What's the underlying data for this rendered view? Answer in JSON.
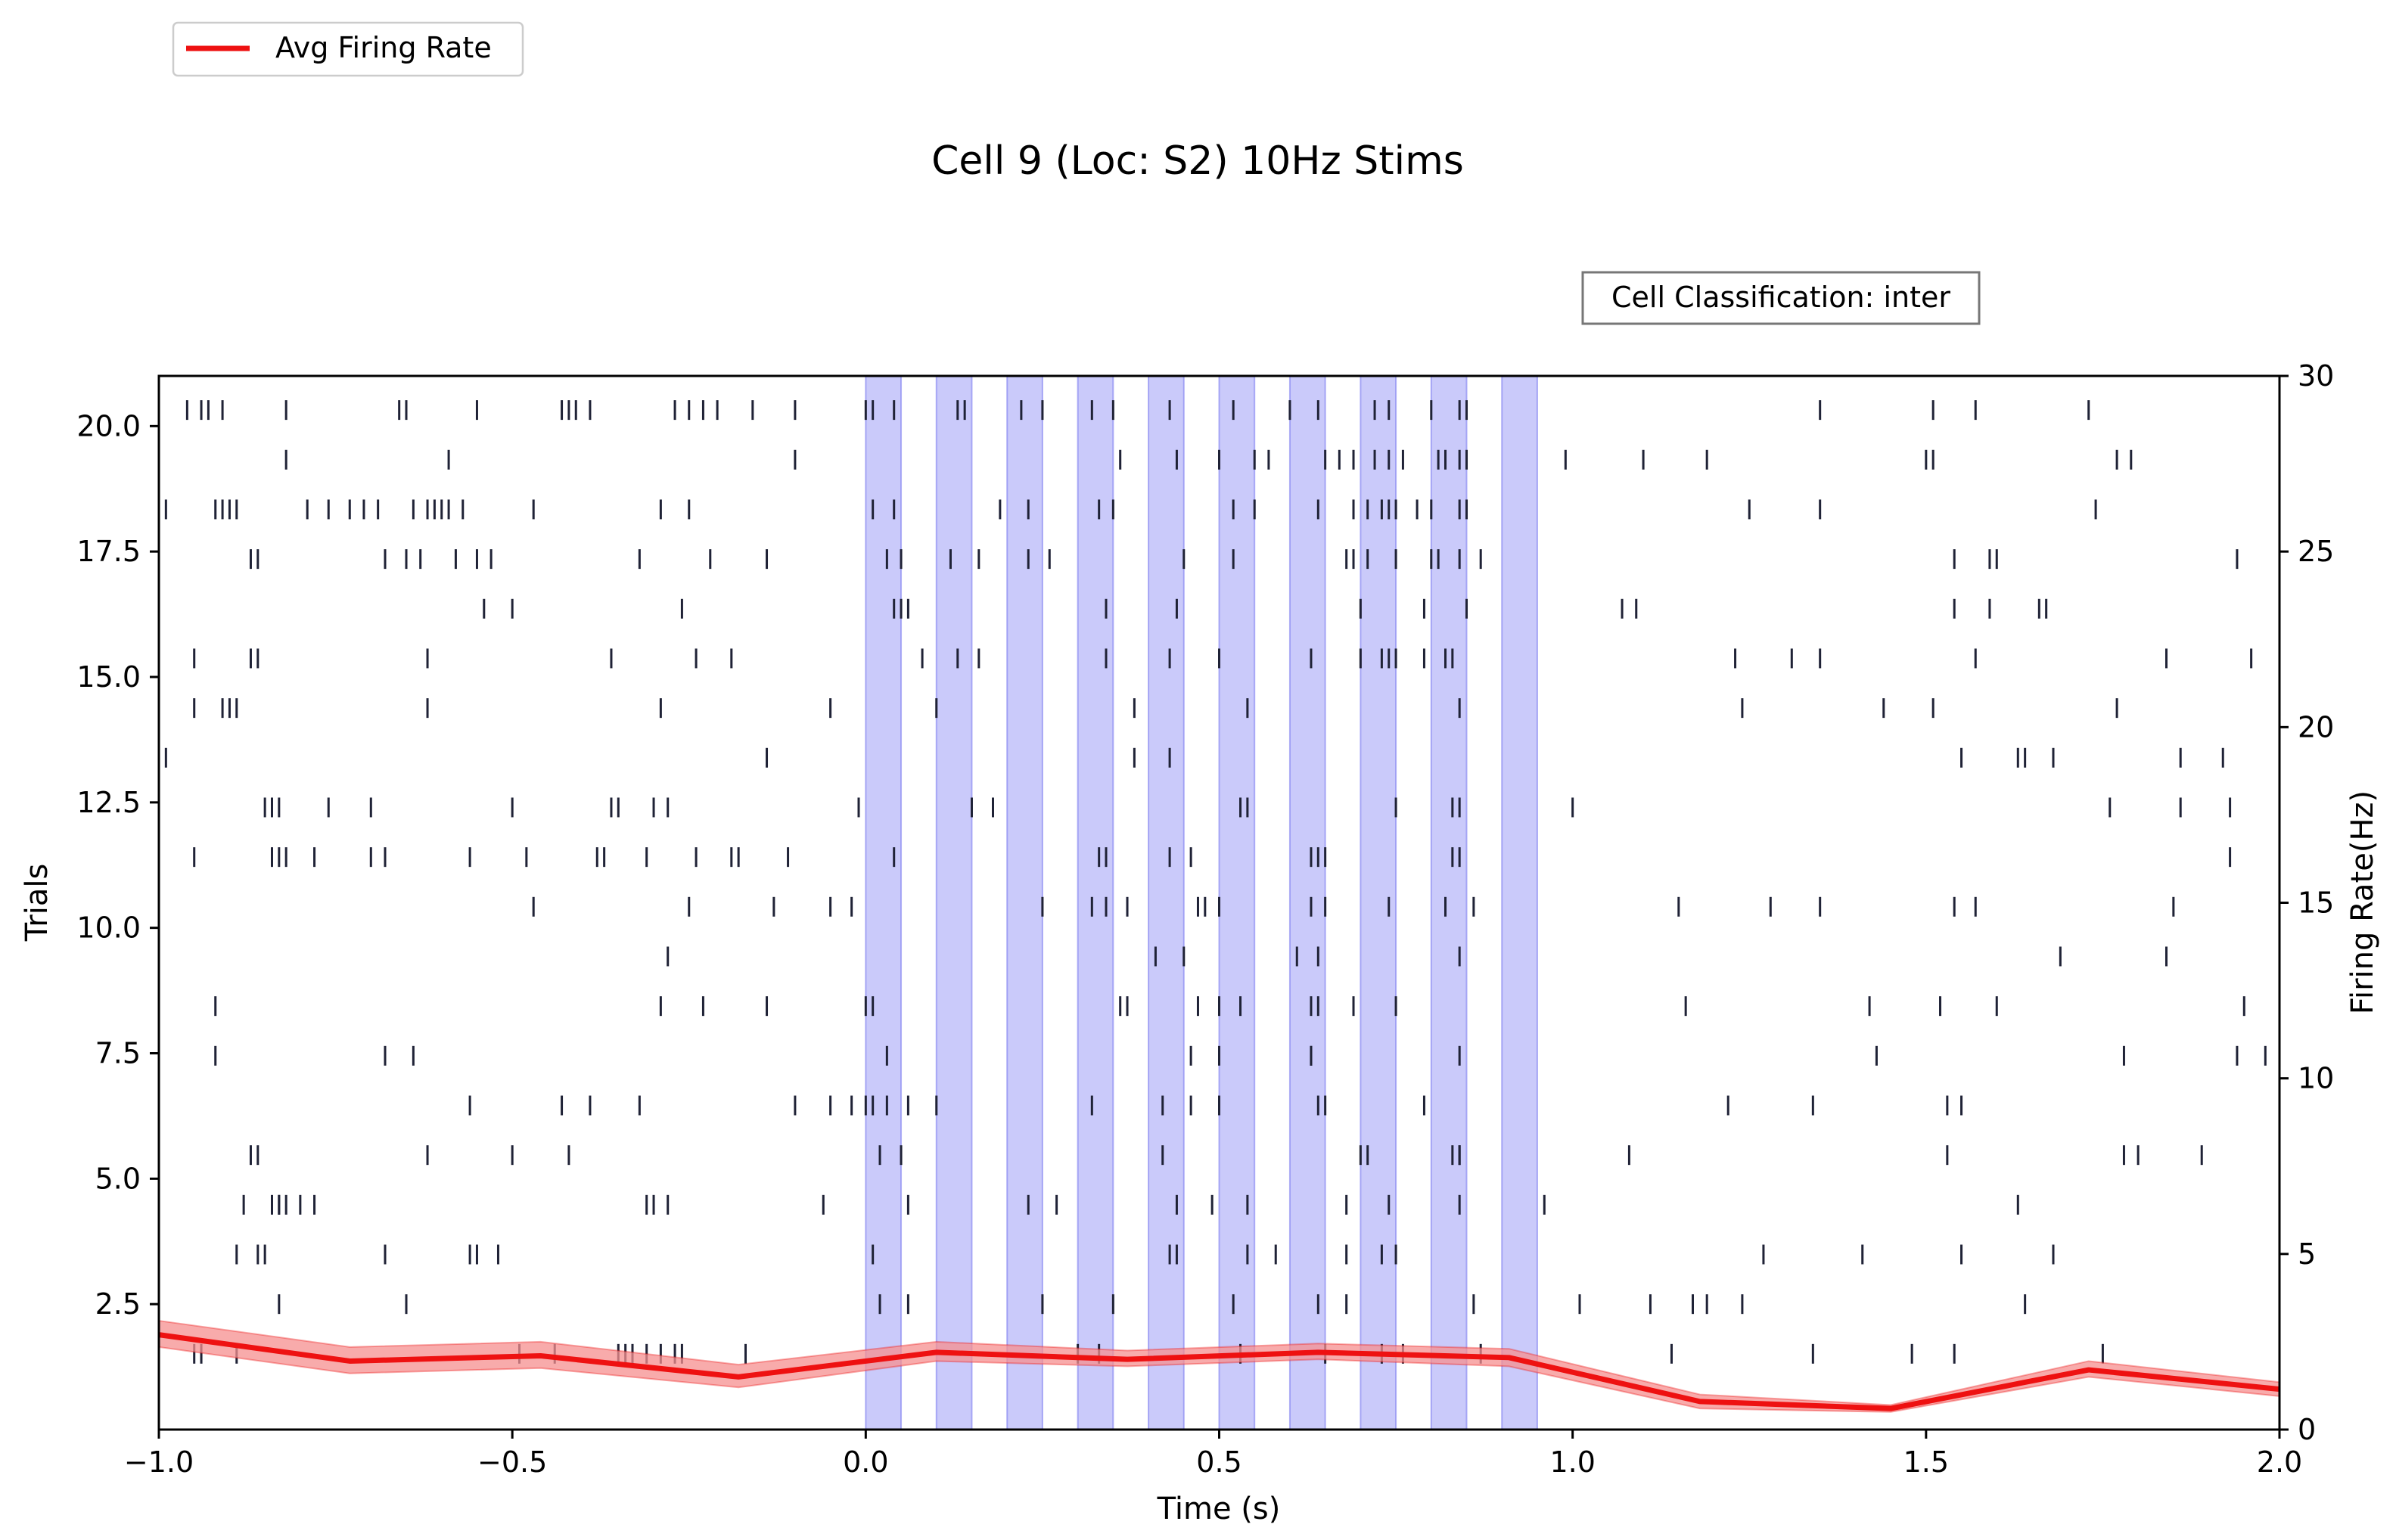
{
  "chart_data": {
    "type": "raster+line",
    "title": "Cell 9 (Loc: S2) 10Hz Stims",
    "annotation": "Cell Classification: inter",
    "xlabel": "Time (s)",
    "ylabel": "Trials",
    "ylabel_right": "Firing Rate(Hz)",
    "xlim": [
      -1.0,
      2.0
    ],
    "ylim": [
      0.0,
      21.0
    ],
    "ylim_right": [
      0,
      30
    ],
    "xticks": [
      "−1.0",
      "−0.5",
      "0.0",
      "0.5",
      "1.0",
      "1.5",
      "2.0"
    ],
    "yticks": [
      "2.5",
      "5.0",
      "7.5",
      "10.0",
      "12.5",
      "15.0",
      "17.5",
      "20.0"
    ],
    "yticks_right": [
      "0",
      "5",
      "10",
      "15",
      "20",
      "25",
      "30"
    ],
    "legend": {
      "label": "Avg Firing Rate",
      "placement": "top-left, outside"
    },
    "colors": {
      "line": "#ee1111",
      "band": "#f58f8f",
      "stim": "#b8b8f8",
      "stim_edge": "#7d7df0",
      "spike": "#1f2236"
    },
    "stim_windows": [
      [
        0.0,
        0.05
      ],
      [
        0.1,
        0.15
      ],
      [
        0.2,
        0.25
      ],
      [
        0.3,
        0.35
      ],
      [
        0.4,
        0.45
      ],
      [
        0.5,
        0.55
      ],
      [
        0.6,
        0.65
      ],
      [
        0.7,
        0.75
      ],
      [
        0.8,
        0.85
      ],
      [
        0.9,
        0.95
      ]
    ],
    "avg_firing_rate": {
      "x": [
        -1.0,
        -0.73,
        -0.46,
        -0.18,
        0.1,
        0.37,
        0.64,
        0.91,
        1.18,
        1.45,
        1.73,
        2.0
      ],
      "y": [
        2.7,
        1.95,
        2.1,
        1.5,
        2.2,
        2.0,
        2.2,
        2.05,
        0.8,
        0.6,
        1.7,
        1.15
      ],
      "y_lower": [
        2.35,
        1.6,
        1.75,
        1.2,
        1.95,
        1.8,
        2.0,
        1.8,
        0.6,
        0.5,
        1.5,
        0.95
      ],
      "y_upper": [
        3.1,
        2.35,
        2.5,
        1.85,
        2.5,
        2.25,
        2.45,
        2.3,
        1.0,
        0.7,
        1.95,
        1.35
      ]
    },
    "spike_trials": [
      {
        "trial": 20,
        "times": [
          -0.96,
          -0.94,
          -0.93,
          -0.91,
          -0.82,
          -0.66,
          -0.65,
          -0.55,
          -0.43,
          -0.42,
          -0.41,
          -0.39,
          -0.27,
          -0.25,
          -0.23,
          -0.21,
          -0.16,
          -0.1,
          0.0,
          0.01,
          0.04,
          0.13,
          0.14,
          0.22,
          0.25,
          0.32,
          0.35,
          0.43,
          0.52,
          0.6,
          0.64,
          0.72,
          0.74,
          0.8,
          0.84,
          0.85,
          1.35,
          1.51,
          1.57,
          1.73
        ]
      },
      {
        "trial": 19,
        "times": [
          -0.82,
          -0.59,
          -0.1,
          0.36,
          0.44,
          0.5,
          0.55,
          0.57,
          0.65,
          0.67,
          0.69,
          0.72,
          0.74,
          0.76,
          0.81,
          0.82,
          0.84,
          0.85,
          0.99,
          1.1,
          1.19,
          1.5,
          1.51,
          1.77,
          1.79
        ]
      },
      {
        "trial": 18,
        "times": [
          -0.99,
          -0.92,
          -0.91,
          -0.9,
          -0.89,
          -0.79,
          -0.76,
          -0.73,
          -0.71,
          -0.69,
          -0.64,
          -0.62,
          -0.61,
          -0.6,
          -0.59,
          -0.57,
          -0.47,
          -0.29,
          -0.25,
          0.01,
          0.04,
          0.19,
          0.23,
          0.33,
          0.35,
          0.52,
          0.55,
          0.64,
          0.69,
          0.71,
          0.73,
          0.74,
          0.75,
          0.78,
          0.8,
          0.84,
          0.85,
          1.25,
          1.35,
          1.74
        ]
      },
      {
        "trial": 17,
        "times": [
          -0.87,
          -0.86,
          -0.68,
          -0.65,
          -0.63,
          -0.58,
          -0.55,
          -0.53,
          -0.32,
          -0.22,
          -0.14,
          0.03,
          0.05,
          0.12,
          0.16,
          0.23,
          0.26,
          0.45,
          0.52,
          0.68,
          0.69,
          0.71,
          0.75,
          0.8,
          0.81,
          0.84,
          0.87,
          1.54,
          1.59,
          1.6,
          1.94
        ]
      },
      {
        "trial": 16,
        "times": [
          -0.54,
          -0.5,
          -0.26,
          0.04,
          0.05,
          0.06,
          0.34,
          0.44,
          0.7,
          0.79,
          0.85,
          1.07,
          1.09,
          1.54,
          1.59,
          1.66,
          1.67
        ]
      },
      {
        "trial": 15,
        "times": [
          -0.95,
          -0.87,
          -0.86,
          -0.62,
          -0.36,
          -0.24,
          -0.19,
          0.08,
          0.13,
          0.16,
          0.34,
          0.43,
          0.5,
          0.63,
          0.7,
          0.73,
          0.74,
          0.75,
          0.79,
          0.82,
          0.83,
          1.23,
          1.31,
          1.35,
          1.57,
          1.84,
          1.96
        ]
      },
      {
        "trial": 14,
        "times": [
          -0.95,
          -0.91,
          -0.9,
          -0.89,
          -0.62,
          -0.29,
          -0.05,
          0.1,
          0.38,
          0.54,
          0.84,
          1.24,
          1.44,
          1.51,
          1.77
        ]
      },
      {
        "trial": 13,
        "times": [
          -0.99,
          -0.14,
          0.38,
          0.43,
          1.55,
          1.63,
          1.64,
          1.68,
          1.86,
          1.92
        ]
      },
      {
        "trial": 12,
        "times": [
          -0.85,
          -0.84,
          -0.83,
          -0.76,
          -0.7,
          -0.5,
          -0.36,
          -0.35,
          -0.3,
          -0.28,
          -0.01,
          0.15,
          0.18,
          0.53,
          0.54,
          0.75,
          0.83,
          0.84,
          1.0,
          1.76,
          1.86,
          1.93
        ]
      },
      {
        "trial": 11,
        "times": [
          -0.95,
          -0.84,
          -0.83,
          -0.82,
          -0.78,
          -0.7,
          -0.68,
          -0.56,
          -0.48,
          -0.38,
          -0.37,
          -0.31,
          -0.24,
          -0.19,
          -0.18,
          -0.11,
          0.04,
          0.33,
          0.34,
          0.43,
          0.46,
          0.63,
          0.64,
          0.65,
          0.83,
          0.84,
          1.93
        ]
      },
      {
        "trial": 10,
        "times": [
          -0.47,
          -0.25,
          -0.13,
          -0.05,
          -0.02,
          0.25,
          0.32,
          0.34,
          0.37,
          0.47,
          0.48,
          0.5,
          0.63,
          0.65,
          0.74,
          0.82,
          0.86,
          1.15,
          1.28,
          1.35,
          1.54,
          1.57,
          1.85
        ]
      },
      {
        "trial": 9,
        "times": [
          -0.28,
          0.41,
          0.45,
          0.61,
          0.64,
          0.84,
          1.69,
          1.84
        ]
      },
      {
        "trial": 8,
        "times": [
          -0.92,
          -0.29,
          -0.23,
          -0.14,
          0.0,
          0.01,
          0.36,
          0.37,
          0.47,
          0.5,
          0.53,
          0.63,
          0.64,
          0.69,
          0.75,
          1.16,
          1.42,
          1.52,
          1.6,
          1.95
        ]
      },
      {
        "trial": 7,
        "times": [
          -0.92,
          -0.68,
          -0.64,
          0.03,
          0.46,
          0.5,
          0.63,
          0.63,
          0.84,
          1.43,
          1.78,
          1.94,
          1.98
        ]
      },
      {
        "trial": 6,
        "times": [
          -0.56,
          -0.43,
          -0.39,
          -0.32,
          -0.1,
          -0.05,
          -0.02,
          0.0,
          0.01,
          0.03,
          0.06,
          0.1,
          0.32,
          0.42,
          0.46,
          0.5,
          0.64,
          0.65,
          0.79,
          1.22,
          1.34,
          1.53,
          1.55
        ]
      },
      {
        "trial": 5,
        "times": [
          -0.87,
          -0.86,
          -0.62,
          -0.5,
          -0.42,
          0.02,
          0.05,
          0.42,
          0.7,
          0.71,
          0.83,
          0.84,
          0.84,
          1.08,
          1.53,
          1.78,
          1.8,
          1.89
        ]
      },
      {
        "trial": 4,
        "times": [
          -0.88,
          -0.84,
          -0.83,
          -0.83,
          -0.82,
          -0.8,
          -0.78,
          -0.31,
          -0.3,
          -0.28,
          -0.06,
          0.06,
          0.23,
          0.27,
          0.44,
          0.49,
          0.54,
          0.68,
          0.74,
          0.84,
          0.96,
          1.63
        ]
      },
      {
        "trial": 3,
        "times": [
          -0.89,
          -0.86,
          -0.85,
          -0.68,
          -0.56,
          -0.55,
          -0.52,
          0.01,
          0.43,
          0.44,
          0.54,
          0.58,
          0.68,
          0.73,
          0.75,
          1.27,
          1.41,
          1.55,
          1.68
        ]
      },
      {
        "trial": 2,
        "times": [
          -0.83,
          -0.65,
          0.02,
          0.06,
          0.25,
          0.35,
          0.52,
          0.64,
          0.68,
          0.86,
          1.01,
          1.11,
          1.17,
          1.19,
          1.24,
          1.64
        ]
      },
      {
        "trial": 1,
        "times": [
          -0.95,
          -0.94,
          -0.89,
          -0.49,
          -0.44,
          -0.35,
          -0.34,
          -0.33,
          -0.31,
          -0.29,
          -0.27,
          -0.26,
          -0.17,
          0.3,
          0.33,
          0.53,
          0.65,
          0.73,
          0.76,
          0.87,
          1.14,
          1.34,
          1.48,
          1.54,
          1.75
        ]
      }
    ]
  }
}
